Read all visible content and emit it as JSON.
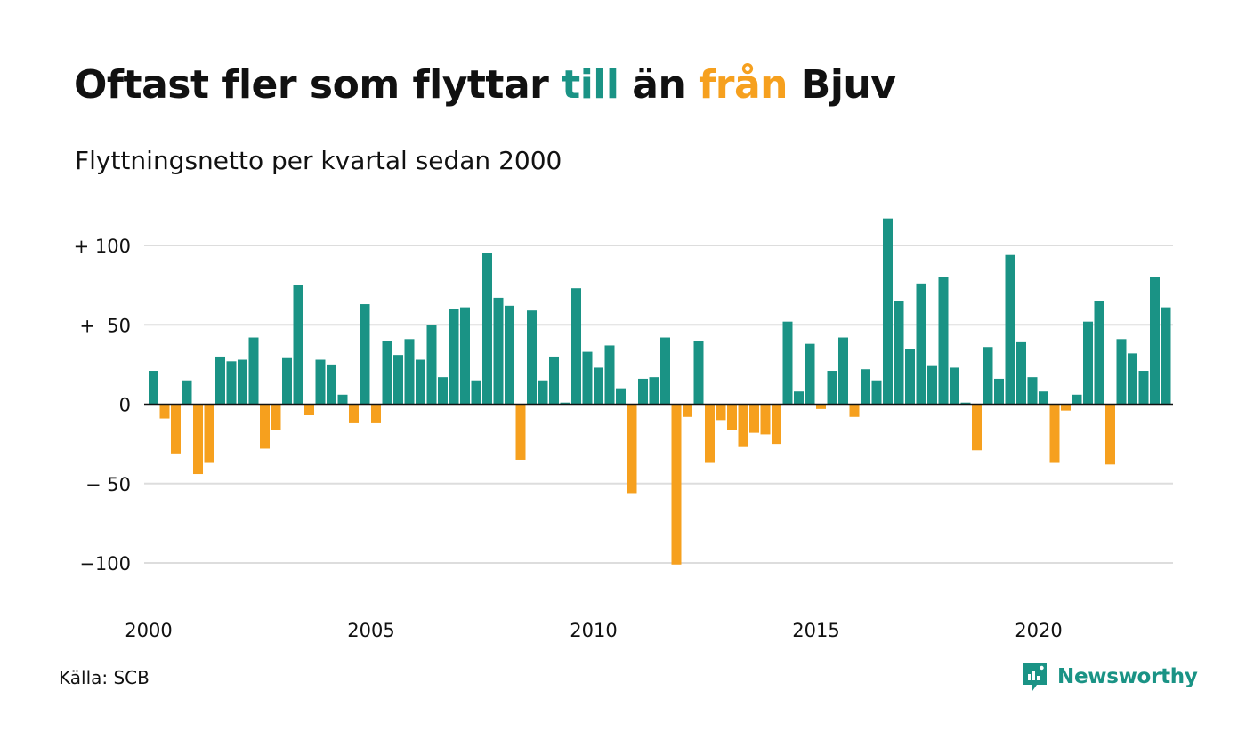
{
  "header": {
    "title_part1": "Oftast fler som flyttar ",
    "title_in": "till",
    "title_part2": " än ",
    "title_out": "från",
    "title_part3": " Bjuv",
    "subtitle": "Flyttningsnetto per kvartal sedan 2000"
  },
  "footer": {
    "source": "Källa: SCB",
    "brand": "Newsworthy",
    "brand_icon": "newsworthy-logo-icon"
  },
  "colors": {
    "positive": "#1a9385",
    "negative": "#f6a01e",
    "grid": "#dddddd",
    "zero_line": "#111111"
  },
  "chart_data": {
    "type": "bar",
    "title": "Oftast fler som flyttar till än från Bjuv",
    "subtitle": "Flyttningsnetto per kvartal sedan 2000",
    "xlabel": "",
    "ylabel": "",
    "ylim": [
      -100,
      100
    ],
    "yticks": [
      {
        "value": 100,
        "label": "+ 100"
      },
      {
        "value": 50,
        "label": "+  50"
      },
      {
        "value": 0,
        "label": "0"
      },
      {
        "value": -50,
        "label": "− 50"
      },
      {
        "value": -100,
        "label": "−100"
      }
    ],
    "xticks": [
      {
        "value": 2000,
        "label": "2000"
      },
      {
        "value": 2005,
        "label": "2005"
      },
      {
        "value": 2010,
        "label": "2010"
      },
      {
        "value": 2015,
        "label": "2015"
      },
      {
        "value": 2020,
        "label": "2020"
      }
    ],
    "start": "2000 Q1",
    "grid": true,
    "values": [
      21,
      -9,
      -31,
      15,
      -44,
      -37,
      30,
      27,
      28,
      42,
      -28,
      -16,
      29,
      75,
      -7,
      28,
      25,
      6,
      -12,
      63,
      -12,
      40,
      31,
      41,
      28,
      50,
      17,
      60,
      61,
      15,
      95,
      67,
      62,
      -35,
      59,
      15,
      30,
      1,
      73,
      33,
      23,
      37,
      10,
      -56,
      16,
      17,
      42,
      -101,
      -8,
      40,
      -37,
      -10,
      -16,
      -27,
      -18,
      -19,
      -25,
      52,
      8,
      38,
      -3,
      21,
      42,
      -8,
      22,
      15,
      117,
      65,
      35,
      76,
      24,
      80,
      23,
      1,
      -29,
      36,
      16,
      94,
      39,
      17,
      8,
      -37,
      -4,
      6,
      52,
      65,
      -38,
      41,
      32,
      21,
      80,
      61
    ]
  }
}
